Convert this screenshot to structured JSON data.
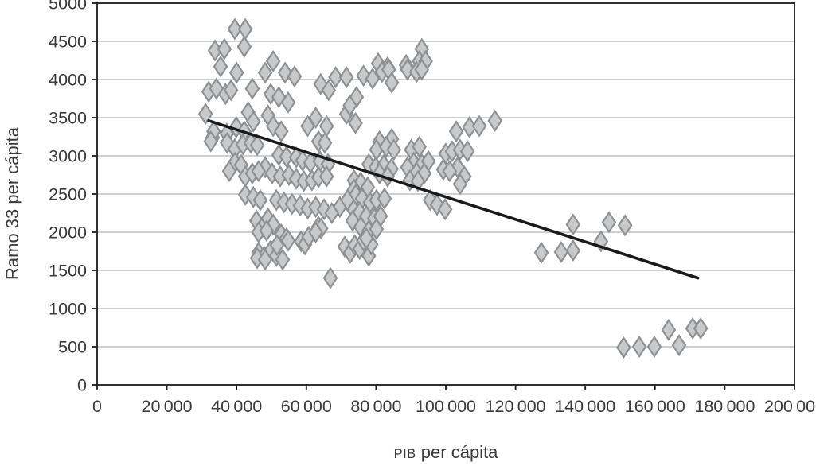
{
  "chart_data": {
    "type": "scatter",
    "title": "",
    "xlabel_acronym": "PIB",
    "xlabel_rest": " per cápita",
    "ylabel": "Ramo 33 per cápita",
    "xlim": [
      0,
      200000
    ],
    "ylim": [
      0,
      5000
    ],
    "x_tick_step": 20000,
    "y_tick_step": 500,
    "x_tick_labels": [
      "0",
      "20 000",
      "40 000",
      "60 000",
      "80 000",
      "100 000",
      "120 000",
      "140 000",
      "160 000",
      "180 000",
      "200 000"
    ],
    "y_tick_labels": [
      "0",
      "500",
      "1000",
      "1500",
      "2000",
      "2500",
      "3000",
      "3500",
      "4000",
      "4500",
      "5000"
    ],
    "grid": "horizontal",
    "legend": "none",
    "marker": {
      "shape": "diamond",
      "fill": "#c7c9cb",
      "stroke": "#8e9092",
      "half_width": 8,
      "half_height": 12
    },
    "trendline": {
      "x1": 32000,
      "y1": 3460,
      "x2": 172300,
      "y2": 1400,
      "color": "#1a1a1a"
    },
    "colors": {
      "axis": "#1a1a1a",
      "grid": "#b0b2b4",
      "text": "#3a3a3a",
      "background": "#ffffff"
    },
    "points": [
      [
        33800,
        4380
      ],
      [
        36500,
        4400
      ],
      [
        39500,
        4660
      ],
      [
        42500,
        4660
      ],
      [
        42200,
        4430
      ],
      [
        93100,
        4400
      ],
      [
        35400,
        4170
      ],
      [
        50500,
        4240
      ],
      [
        80600,
        4210
      ],
      [
        83300,
        4160
      ],
      [
        88600,
        4190
      ],
      [
        92400,
        4240
      ],
      [
        94200,
        4240
      ],
      [
        40000,
        4090
      ],
      [
        48200,
        4090
      ],
      [
        53900,
        4090
      ],
      [
        56600,
        4040
      ],
      [
        68400,
        4030
      ],
      [
        71500,
        4030
      ],
      [
        76400,
        4050
      ],
      [
        79000,
        4010
      ],
      [
        81700,
        4100
      ],
      [
        83600,
        4130
      ],
      [
        89000,
        4130
      ],
      [
        91600,
        4100
      ],
      [
        93100,
        4130
      ],
      [
        32000,
        3840
      ],
      [
        34200,
        3880
      ],
      [
        36800,
        3810
      ],
      [
        38400,
        3860
      ],
      [
        44500,
        3880
      ],
      [
        49800,
        3810
      ],
      [
        52100,
        3770
      ],
      [
        54800,
        3700
      ],
      [
        64100,
        3940
      ],
      [
        66400,
        3860
      ],
      [
        84500,
        3960
      ],
      [
        74400,
        3770
      ],
      [
        31100,
        3550
      ],
      [
        43300,
        3570
      ],
      [
        44800,
        3450
      ],
      [
        49000,
        3530
      ],
      [
        62700,
        3500
      ],
      [
        71500,
        3550
      ],
      [
        72500,
        3660
      ],
      [
        74100,
        3430
      ],
      [
        114100,
        3460
      ],
      [
        33100,
        3240
      ],
      [
        33400,
        3320
      ],
      [
        37200,
        3290
      ],
      [
        39900,
        3375
      ],
      [
        42200,
        3320
      ],
      [
        50500,
        3390
      ],
      [
        52800,
        3320
      ],
      [
        60400,
        3390
      ],
      [
        65800,
        3390
      ],
      [
        103000,
        3320
      ],
      [
        106800,
        3375
      ],
      [
        109600,
        3390
      ],
      [
        81000,
        3190
      ],
      [
        84500,
        3220
      ],
      [
        32600,
        3190
      ],
      [
        37300,
        3170
      ],
      [
        39500,
        3090
      ],
      [
        41800,
        3150
      ],
      [
        44100,
        3170
      ],
      [
        45900,
        3140
      ],
      [
        63500,
        3190
      ],
      [
        65300,
        3170
      ],
      [
        52100,
        3010
      ],
      [
        80100,
        3080
      ],
      [
        82900,
        3120
      ],
      [
        85100,
        3080
      ],
      [
        90100,
        3080
      ],
      [
        92400,
        3120
      ],
      [
        100000,
        3030
      ],
      [
        101800,
        3060
      ],
      [
        104100,
        3080
      ],
      [
        106200,
        3060
      ],
      [
        54300,
        2990
      ],
      [
        57100,
        2980
      ],
      [
        58900,
        2940
      ],
      [
        61200,
        2910
      ],
      [
        63900,
        2930
      ],
      [
        66200,
        2890
      ],
      [
        39500,
        2910
      ],
      [
        41300,
        2880
      ],
      [
        48200,
        2850
      ],
      [
        77900,
        2890
      ],
      [
        79900,
        2850
      ],
      [
        82200,
        2880
      ],
      [
        90800,
        2910
      ],
      [
        93100,
        2890
      ],
      [
        95000,
        2930
      ],
      [
        89000,
        2850
      ],
      [
        99300,
        2820
      ],
      [
        103400,
        2850
      ],
      [
        101100,
        2800
      ],
      [
        37900,
        2800
      ],
      [
        42500,
        2730
      ],
      [
        44500,
        2770
      ],
      [
        46300,
        2800
      ],
      [
        50200,
        2770
      ],
      [
        52500,
        2730
      ],
      [
        55000,
        2750
      ],
      [
        57100,
        2700
      ],
      [
        59300,
        2670
      ],
      [
        61600,
        2680
      ],
      [
        63500,
        2720
      ],
      [
        65800,
        2730
      ],
      [
        84400,
        2830
      ],
      [
        81000,
        2770
      ],
      [
        83300,
        2730
      ],
      [
        73700,
        2680
      ],
      [
        75600,
        2650
      ],
      [
        77600,
        2590
      ],
      [
        91600,
        2780
      ],
      [
        93800,
        2770
      ],
      [
        89700,
        2680
      ],
      [
        92000,
        2670
      ],
      [
        105300,
        2730
      ],
      [
        104100,
        2630
      ],
      [
        73700,
        2560
      ],
      [
        42500,
        2490
      ],
      [
        44800,
        2460
      ],
      [
        46800,
        2420
      ],
      [
        51400,
        2420
      ],
      [
        53600,
        2390
      ],
      [
        55900,
        2370
      ],
      [
        58200,
        2350
      ],
      [
        60400,
        2310
      ],
      [
        62700,
        2330
      ],
      [
        65100,
        2300
      ],
      [
        74200,
        2490
      ],
      [
        76000,
        2440
      ],
      [
        78300,
        2390
      ],
      [
        80100,
        2420
      ],
      [
        82400,
        2440
      ],
      [
        73300,
        2310
      ],
      [
        69600,
        2330
      ],
      [
        71800,
        2420
      ],
      [
        95500,
        2420
      ],
      [
        97500,
        2360
      ],
      [
        99800,
        2300
      ],
      [
        45700,
        2150
      ],
      [
        47500,
        2070
      ],
      [
        49000,
        2180
      ],
      [
        50500,
        2100
      ],
      [
        67300,
        2250
      ],
      [
        75300,
        2260
      ],
      [
        77200,
        2210
      ],
      [
        79500,
        2180
      ],
      [
        81300,
        2210
      ],
      [
        73300,
        2150
      ],
      [
        75600,
        2070
      ],
      [
        77900,
        2020
      ],
      [
        80100,
        2040
      ],
      [
        63500,
        2070
      ],
      [
        46300,
        2000
      ],
      [
        48600,
        2020
      ],
      [
        64200,
        2050
      ],
      [
        52800,
        1970
      ],
      [
        54300,
        1920
      ],
      [
        58500,
        1880
      ],
      [
        59600,
        1840
      ],
      [
        60700,
        1940
      ],
      [
        62700,
        2000
      ],
      [
        46300,
        1730
      ],
      [
        47900,
        1680
      ],
      [
        49800,
        1760
      ],
      [
        51400,
        1690
      ],
      [
        53200,
        1640
      ],
      [
        45900,
        1660
      ],
      [
        48200,
        1640
      ],
      [
        51600,
        1830
      ],
      [
        54800,
        1890
      ],
      [
        71000,
        1810
      ],
      [
        72600,
        1730
      ],
      [
        73900,
        1830
      ],
      [
        75300,
        1780
      ],
      [
        76400,
        1890
      ],
      [
        77900,
        1690
      ],
      [
        78600,
        1840
      ],
      [
        77200,
        1920
      ],
      [
        127400,
        1730
      ],
      [
        133100,
        1740
      ],
      [
        136500,
        1760
      ],
      [
        136500,
        2100
      ],
      [
        144500,
        1880
      ],
      [
        146800,
        2130
      ],
      [
        151400,
        2090
      ],
      [
        66900,
        1400
      ],
      [
        151000,
        490
      ],
      [
        155500,
        500
      ],
      [
        159800,
        500
      ],
      [
        163900,
        720
      ],
      [
        166900,
        520
      ],
      [
        170800,
        740
      ],
      [
        173100,
        740
      ]
    ]
  }
}
